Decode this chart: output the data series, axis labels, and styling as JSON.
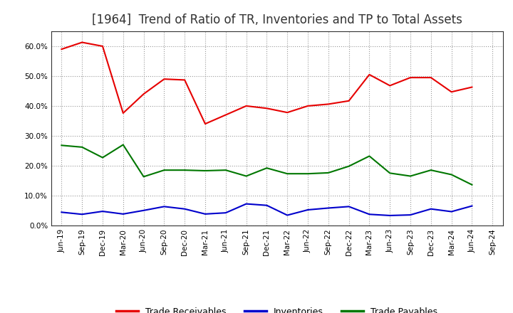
{
  "title": "[1964]  Trend of Ratio of TR, Inventories and TP to Total Assets",
  "x_labels": [
    "Jun-19",
    "Sep-19",
    "Dec-19",
    "Mar-20",
    "Jun-20",
    "Sep-20",
    "Dec-20",
    "Mar-21",
    "Jun-21",
    "Sep-21",
    "Dec-21",
    "Mar-22",
    "Jun-22",
    "Sep-22",
    "Dec-22",
    "Mar-23",
    "Jun-23",
    "Sep-23",
    "Dec-23",
    "Mar-24",
    "Jun-24",
    "Sep-24"
  ],
  "trade_receivables": [
    0.59,
    0.613,
    0.6,
    0.376,
    0.44,
    0.49,
    0.487,
    0.34,
    0.37,
    0.4,
    0.392,
    0.378,
    0.4,
    0.406,
    0.417,
    0.505,
    0.468,
    0.495,
    0.495,
    0.447,
    0.463,
    null
  ],
  "inventories": [
    0.044,
    0.037,
    0.047,
    0.038,
    0.05,
    0.063,
    0.055,
    0.038,
    0.042,
    0.072,
    0.067,
    0.034,
    0.052,
    0.058,
    0.063,
    0.037,
    0.033,
    0.035,
    0.055,
    0.046,
    0.065,
    null
  ],
  "trade_payables": [
    0.268,
    0.262,
    0.227,
    0.27,
    0.163,
    0.185,
    0.185,
    0.183,
    0.185,
    0.165,
    0.192,
    0.173,
    0.173,
    0.176,
    0.198,
    0.232,
    0.175,
    0.165,
    0.185,
    0.17,
    0.136,
    null
  ],
  "line_color_tr": "#e60000",
  "line_color_inv": "#0000cc",
  "line_color_tp": "#007700",
  "background_color": "#ffffff",
  "grid_color": "#999999",
  "ylim": [
    0.0,
    0.65
  ],
  "yticks": [
    0.0,
    0.1,
    0.2,
    0.3,
    0.4,
    0.5,
    0.6
  ],
  "legend_labels": [
    "Trade Receivables",
    "Inventories",
    "Trade Payables"
  ],
  "title_fontsize": 12,
  "tick_fontsize": 7.5,
  "legend_fontsize": 9
}
